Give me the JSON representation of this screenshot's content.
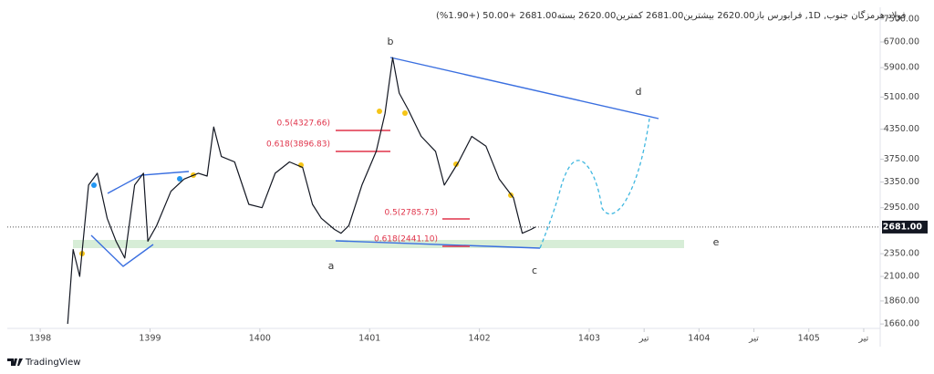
{
  "chart_data": {
    "type": "line",
    "title": "فولاد هرمزگان جنوب, 1D, فرابورس  باز2620.00  بیشترین2681.00  کمترین2620.00  بسته2681.00  +50.00 (+1.90%)",
    "source": "TradingView",
    "x": [
      1398.25,
      1398.3,
      1398.36,
      1398.44,
      1398.52,
      1398.61,
      1398.69,
      1398.77,
      1398.86,
      1398.94,
      1398.98,
      1399.06,
      1399.19,
      1399.31,
      1399.44,
      1399.52,
      1399.58,
      1399.65,
      1399.77,
      1399.9,
      1400.02,
      1400.14,
      1400.27,
      1400.39,
      1400.48,
      1400.56,
      1400.68,
      1400.74,
      1400.81,
      1400.93,
      1401.06,
      1401.14,
      1401.21,
      1401.27,
      1401.35,
      1401.47,
      1401.6,
      1401.68,
      1401.81,
      1401.93,
      1402.06,
      1402.18,
      1402.31,
      1402.39,
      1402.47,
      1402.51
    ],
    "series": [
      {
        "color": "#131722",
        "values": [
          1660,
          2400,
          2100,
          3300,
          3500,
          2800,
          2500,
          2300,
          3300,
          3500,
          2500,
          2700,
          3200,
          3400,
          3500,
          3450,
          4400,
          3800,
          3700,
          3000,
          2950,
          3500,
          3700,
          3600,
          3000,
          2800,
          2650,
          2600,
          2700,
          3300,
          3900,
          4700,
          6200,
          5200,
          4800,
          4200,
          3900,
          3300,
          3700,
          4200,
          4000,
          3400,
          3100,
          2600,
          2650,
          2681
        ]
      }
    ],
    "last_price": {
      "value": 2681,
      "label": "2681.00"
    },
    "log_scale": true,
    "xlim": [
      1397.7,
      1405.65
    ],
    "xticks": [
      1398,
      1399,
      1400,
      1401,
      1402,
      1403,
      {
        "value": 1403.5,
        "label": "تیر"
      },
      1404,
      {
        "value": 1404.5,
        "label": "تیر"
      },
      1405,
      {
        "value": 1405.5,
        "label": "تیر"
      }
    ],
    "ylim": [
      1624,
      8245
    ],
    "yticks": [
      {
        "value": 1660,
        "label": "1660.00"
      },
      {
        "value": 1860,
        "label": "1860.00"
      },
      {
        "value": 2100,
        "label": "2100.00"
      },
      {
        "value": 2350,
        "label": "2350.00"
      },
      {
        "value": 2950,
        "label": "2950.00"
      },
      {
        "value": 3350,
        "label": "3350.00"
      },
      {
        "value": 3750,
        "label": "3750.00"
      },
      {
        "value": 4350,
        "label": "4350.00"
      },
      {
        "value": 5100,
        "label": "5100.00"
      },
      {
        "value": 5900,
        "label": "5900.00"
      },
      {
        "value": 6700,
        "label": "6700.00"
      },
      {
        "value": 7500,
        "label": "7500.00"
      }
    ],
    "annotations": [
      "0.5(4327.66)",
      "0.618(3896.83)",
      "0.5(2785.73)",
      "0.618(2441.10)",
      "b",
      "a",
      "c",
      "d",
      "e"
    ]
  }
}
